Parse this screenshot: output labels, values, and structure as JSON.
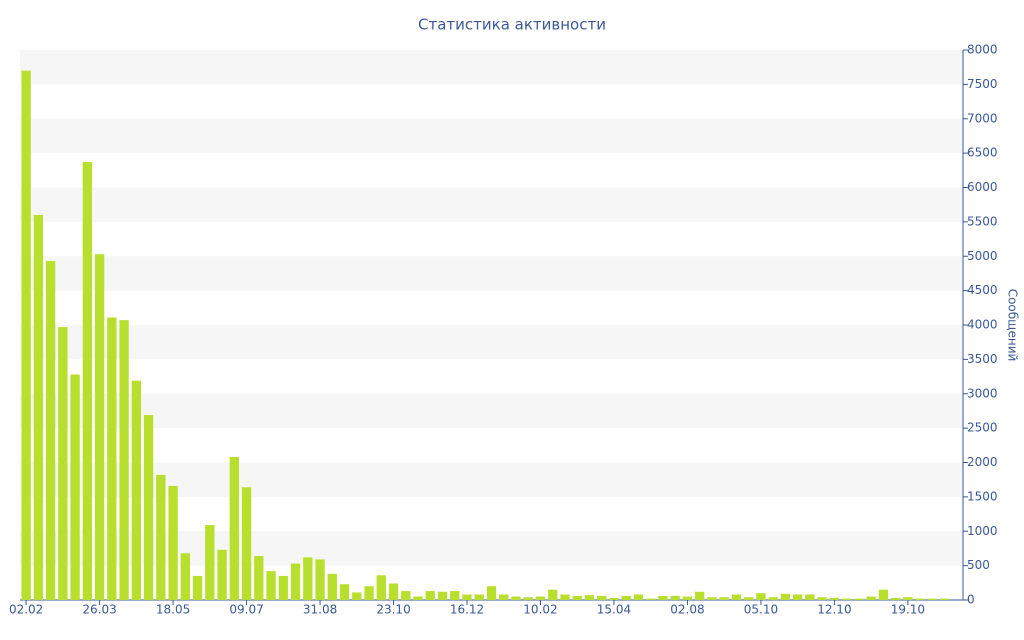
{
  "chart_data": {
    "type": "bar",
    "title": "Статистика активности",
    "y_label": "Сообщений",
    "categories": [
      "02.02",
      null,
      null,
      null,
      null,
      null,
      "26.03",
      null,
      null,
      null,
      null,
      null,
      "18.05",
      null,
      null,
      null,
      null,
      null,
      "09.07",
      null,
      null,
      null,
      null,
      null,
      "31.08",
      null,
      null,
      null,
      null,
      null,
      "23.10",
      null,
      null,
      null,
      null,
      null,
      "16.12",
      null,
      null,
      null,
      null,
      null,
      "10.02",
      null,
      null,
      null,
      null,
      null,
      "15.04",
      null,
      null,
      null,
      null,
      null,
      "02.08",
      null,
      null,
      null,
      null,
      null,
      "05.10",
      null,
      null,
      null,
      null,
      null,
      "12.10",
      null,
      null,
      null,
      null,
      null,
      "19.10",
      null,
      null,
      null
    ],
    "values": [
      7700,
      5600,
      4930,
      3970,
      3280,
      6370,
      5030,
      4110,
      4070,
      3190,
      2690,
      1820,
      1660,
      680,
      350,
      1090,
      730,
      2080,
      1640,
      640,
      420,
      350,
      530,
      620,
      590,
      380,
      230,
      110,
      200,
      360,
      240,
      130,
      50,
      130,
      120,
      130,
      80,
      80,
      200,
      80,
      50,
      40,
      50,
      150,
      80,
      60,
      70,
      60,
      30,
      60,
      80,
      20,
      60,
      60,
      50,
      120,
      40,
      40,
      80,
      40,
      100,
      40,
      90,
      80,
      80,
      40,
      30,
      20,
      20,
      50,
      150,
      30,
      40,
      20,
      20,
      20
    ],
    "color": "#b8df2e",
    "ylim": [
      0,
      8000
    ],
    "yticks": [
      0,
      500,
      1000,
      1500,
      2000,
      2500,
      3000,
      3500,
      4000,
      4500,
      5000,
      5500,
      6000,
      6500,
      7000,
      7500,
      8000
    ],
    "y_axis_side": "right",
    "grid": "bands"
  }
}
